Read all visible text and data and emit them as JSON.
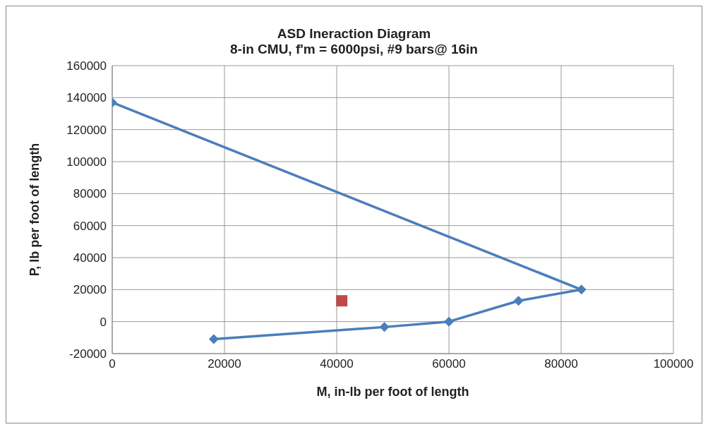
{
  "chart_data": {
    "type": "line",
    "title": "ASD Ineraction Diagram",
    "subtitle": "8-in CMU, f'm = 6000psi, #9 bars@ 16in",
    "xlabel": "M, in-lb per foot of length",
    "ylabel": "P, lb per foot of length",
    "series": [
      {
        "color": "#4a7ebb",
        "x": [
          0,
          83600,
          72400,
          60000,
          48500,
          18100
        ],
        "values": [
          137000,
          20000,
          13000,
          0,
          -3400,
          -11000
        ],
        "marker": "diamond"
      },
      {
        "type": "scatter",
        "color": "#be4b48",
        "x": [
          40900
        ],
        "values": [
          13000
        ],
        "marker": "square"
      }
    ],
    "xlim": [
      0,
      100000
    ],
    "xticks": [
      0,
      20000,
      40000,
      60000,
      80000,
      100000
    ],
    "ylim": [
      -20000,
      160000
    ],
    "yticks": [
      -20000,
      0,
      20000,
      40000,
      60000,
      80000,
      100000,
      120000,
      140000,
      160000
    ],
    "grid": true
  }
}
